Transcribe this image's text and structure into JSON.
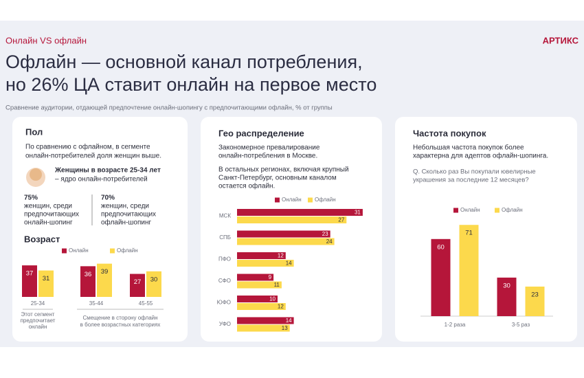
{
  "header": {
    "section": "Онлайн VS офлайн",
    "logo": "АРТИКС",
    "title": [
      "Офлайн — основной канал потребления,",
      "но 26% ЦА ставит онлайн на первое место"
    ],
    "subtitle": "Сравнение аудитории, отдающей предпочтение онлайн-шопингу с предпочитающими офлайн, % от группы"
  },
  "cards": [
    {
      "title": "Пол",
      "text": [
        "По сравнению с офлайном, в сегменте",
        "онлайн-потребителей доля женщин выше."
      ],
      "highlight": {
        "bold": "Женщины в возрасте 25-34 лет",
        "rest": "– ядро онлайн-потребителей"
      },
      "stats": [
        {
          "value": "75%",
          "lines": [
            "женщин, среди",
            "предпочитающих",
            "онлайн-шопинг"
          ]
        },
        {
          "value": "70%",
          "lines": [
            "женщин, среди",
            "предпочитающих",
            "офлайн-шопинг"
          ]
        }
      ]
    },
    {
      "title": "Гео распределение",
      "text": [
        "Закономерное превалирование",
        "онлайн-потребления в Москве."
      ],
      "text2": [
        "В остальных регионах, включая крупный",
        "Санкт-Петербург, основным каналом",
        "остается офлайн."
      ]
    },
    {
      "title": "Частота покупок",
      "text": [
        "Небольшая частота покупок более",
        "характерна для адептов офлайн-шопинга."
      ],
      "question": [
        "Q. Сколько раз Вы покупали ювелирные",
        "украшения за последние 12 месяцев?"
      ]
    }
  ],
  "chart_data": [
    {
      "type": "bar",
      "title": "Возраст",
      "categories": [
        "25-34",
        "35-44",
        "45-55"
      ],
      "series": [
        {
          "name": "Онлайн",
          "color": "#b5163a",
          "values": [
            37,
            36,
            27
          ]
        },
        {
          "name": "Офлайн",
          "color": "#fcd94c",
          "values": [
            31,
            39,
            30
          ]
        }
      ],
      "annotations": [
        [
          "Этот сегмент",
          "предпочитает",
          "онлайн"
        ],
        [
          "Смещение в сторону офлайн",
          "в более возрастных категориях"
        ]
      ]
    },
    {
      "type": "bar",
      "orientation": "horizontal",
      "categories": [
        "МСК",
        "СПБ",
        "ПФО",
        "СФО",
        "ЮФО",
        "УФО"
      ],
      "series": [
        {
          "name": "Онлайн",
          "color": "#b5163a",
          "values": [
            31,
            23,
            12,
            9,
            10,
            14
          ]
        },
        {
          "name": "Офлайн",
          "color": "#fcd94c",
          "values": [
            27,
            24,
            14,
            11,
            12,
            13
          ]
        }
      ]
    },
    {
      "type": "bar",
      "categories": [
        "1-2 раза",
        "3-5 раз"
      ],
      "series": [
        {
          "name": "Онлайн",
          "color": "#b5163a",
          "values": [
            60,
            30
          ]
        },
        {
          "name": "Офлайн",
          "color": "#fcd94c",
          "values": [
            71,
            23
          ]
        }
      ]
    }
  ]
}
